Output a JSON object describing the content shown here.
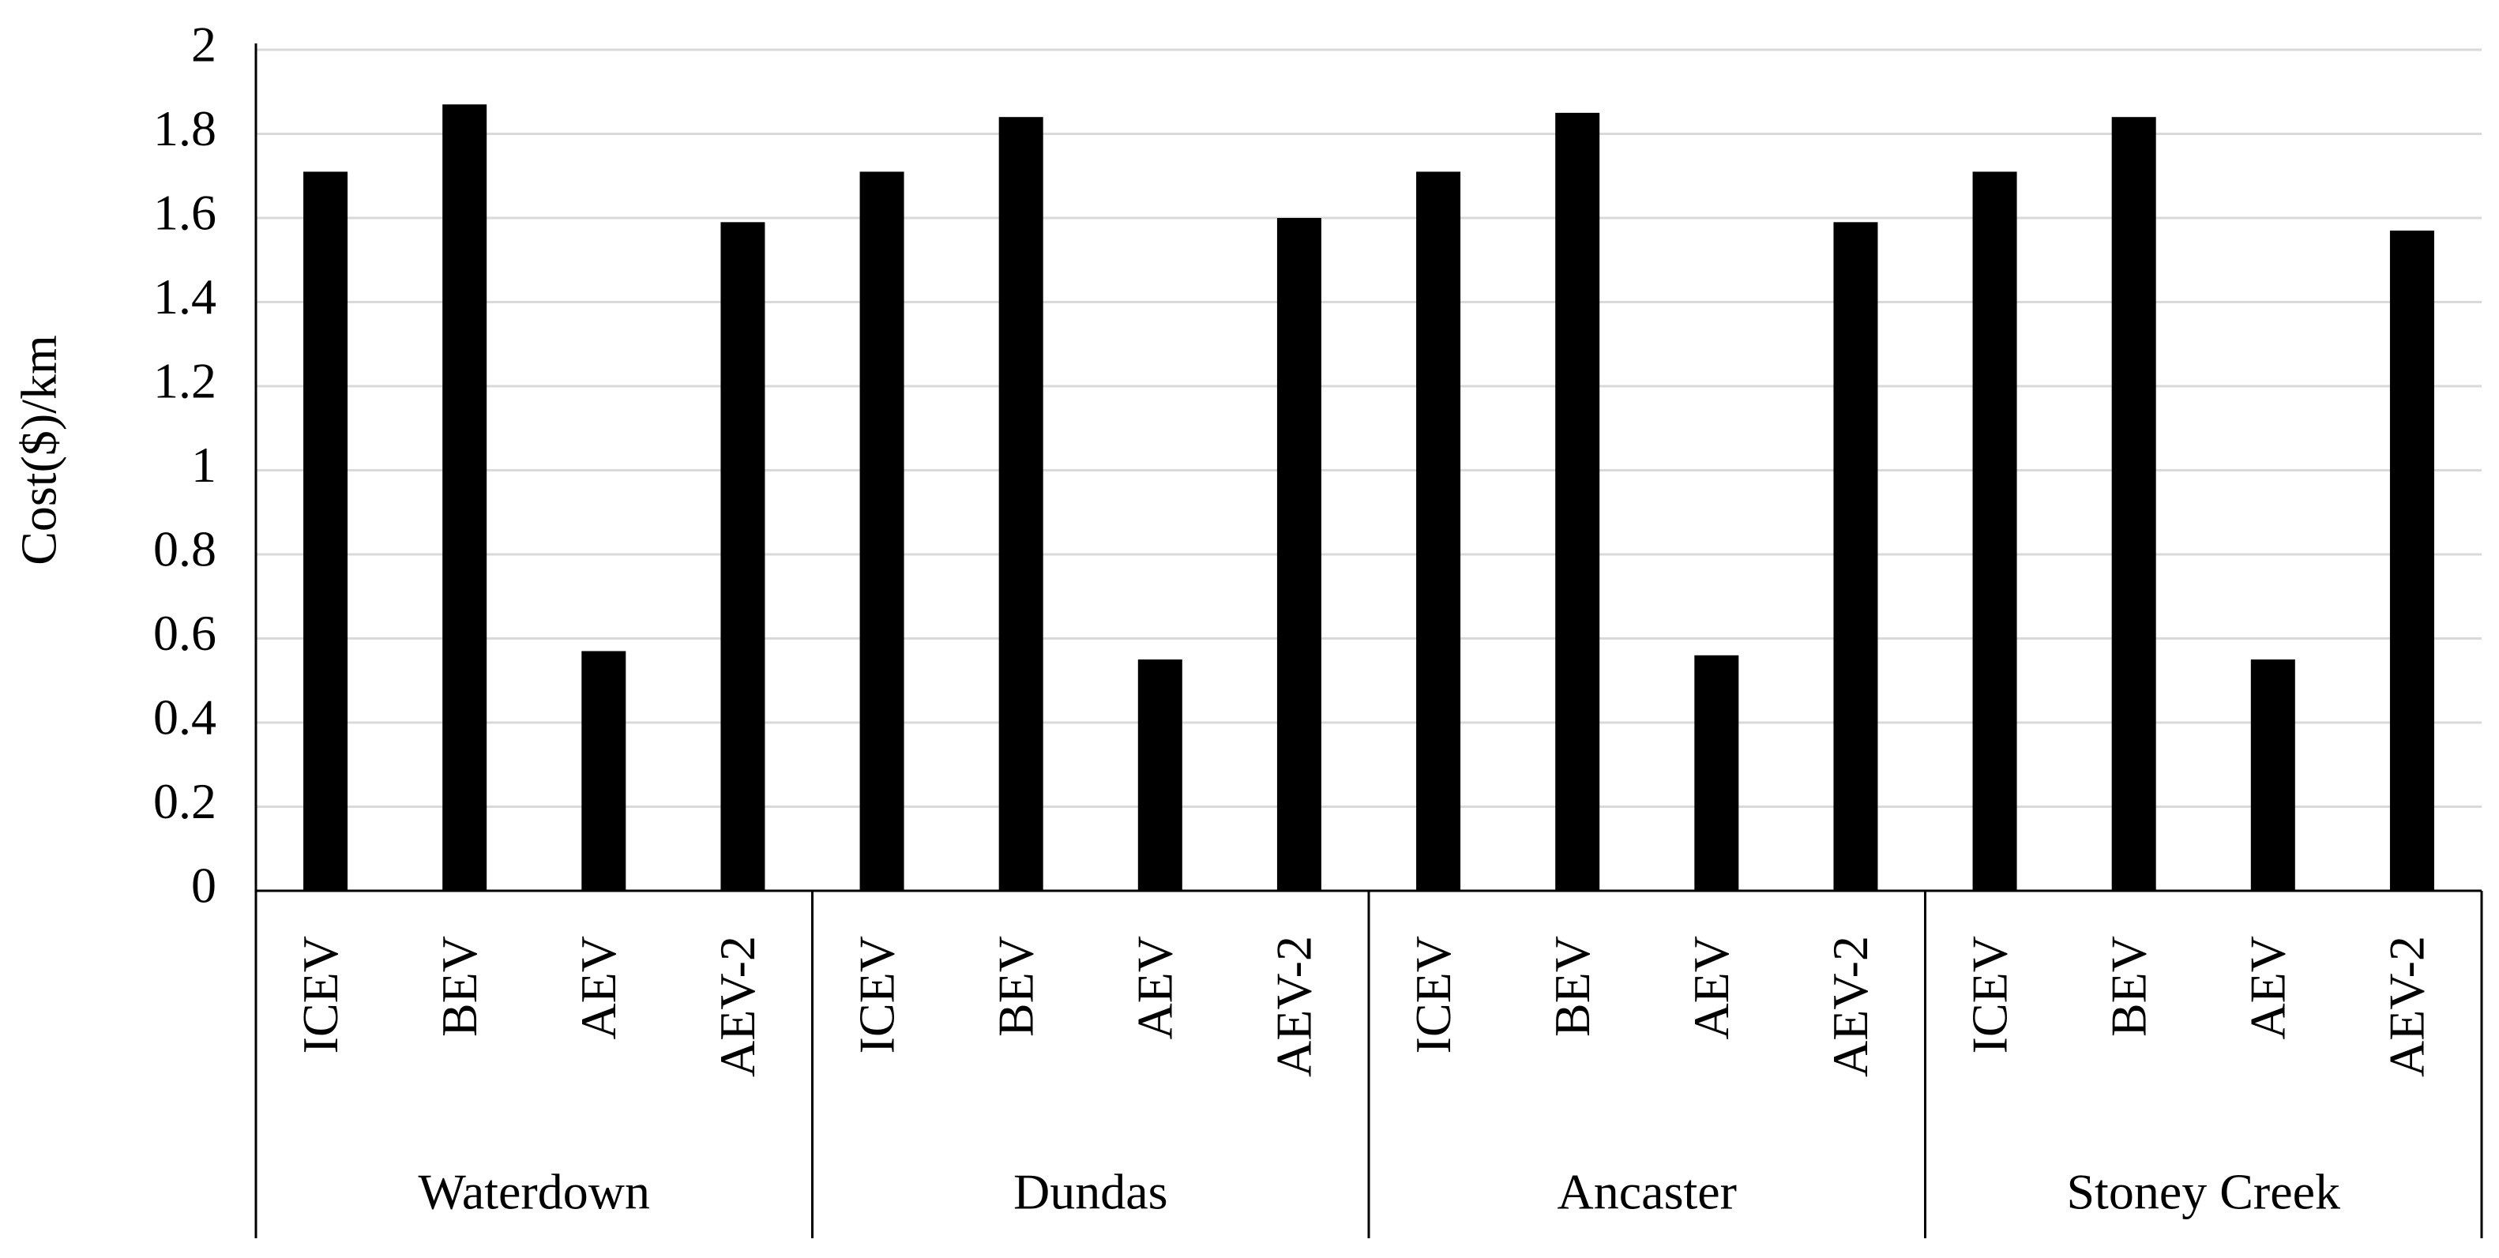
{
  "chart_data": {
    "type": "bar",
    "y_label": "Cost($)/km",
    "color": "#000000",
    "ylim": [
      0,
      2
    ],
    "yticks": [
      0,
      0.2,
      0.4,
      0.6,
      0.8,
      1,
      1.2,
      1.4,
      1.6,
      1.8,
      2
    ],
    "grid": true,
    "groups": [
      {
        "name": "Waterdown",
        "categories": [
          "ICEV",
          "BEV",
          "AEV",
          "AEV-2"
        ],
        "values": [
          1.71,
          1.87,
          0.57,
          1.59
        ]
      },
      {
        "name": "Dundas",
        "categories": [
          "ICEV",
          "BEV",
          "AEV",
          "AEV-2"
        ],
        "values": [
          1.71,
          1.84,
          0.55,
          1.6
        ]
      },
      {
        "name": "Ancaster",
        "categories": [
          "ICEV",
          "BEV",
          "AEV",
          "AEV-2"
        ],
        "values": [
          1.71,
          1.85,
          0.56,
          1.59
        ]
      },
      {
        "name": "Stoney Creek",
        "categories": [
          "ICEV",
          "BEV",
          "AEV",
          "AEV-2"
        ],
        "values": [
          1.71,
          1.84,
          0.55,
          1.57
        ]
      }
    ]
  }
}
